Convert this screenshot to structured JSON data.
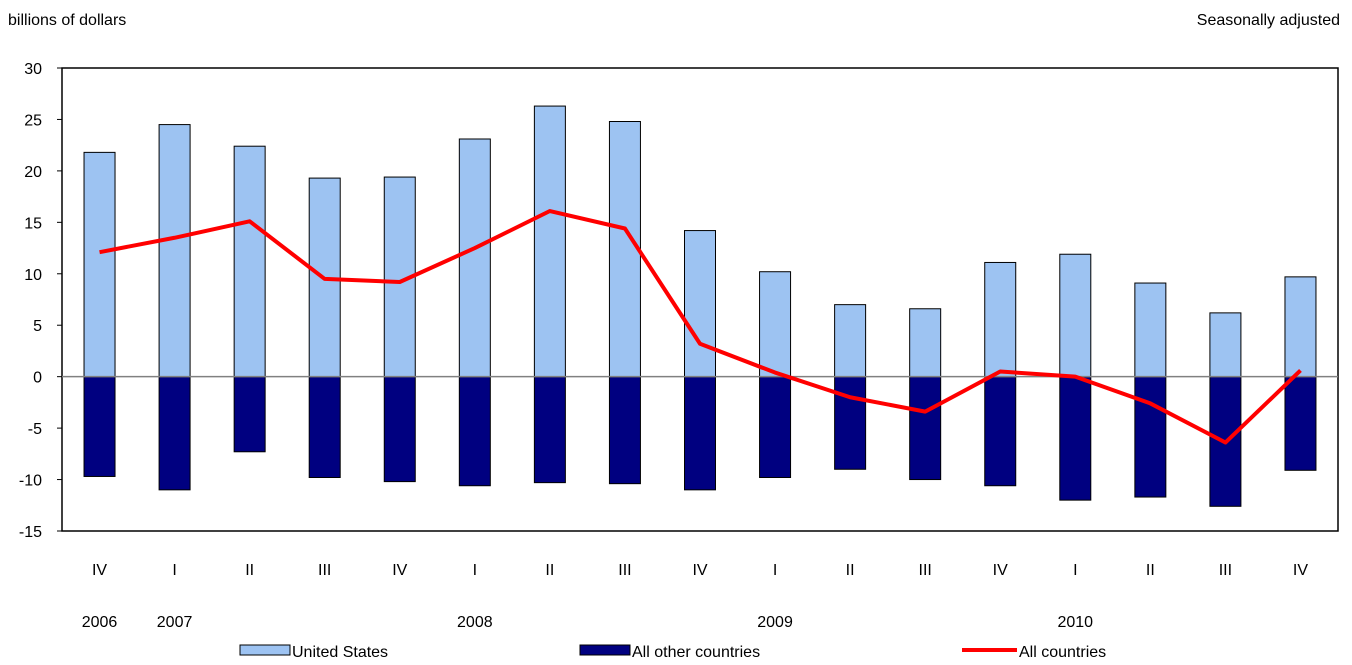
{
  "chart_data": {
    "type": "bar",
    "ylabel": "billions of dollars",
    "note": "Seasonally adjusted",
    "ylim": [
      -15,
      30
    ],
    "yticks": [
      30,
      25,
      20,
      15,
      10,
      5,
      0,
      -5,
      -10,
      -15
    ],
    "categories": [
      "IV",
      "I",
      "II",
      "III",
      "IV",
      "I",
      "II",
      "III",
      "IV",
      "I",
      "II",
      "III",
      "IV",
      "I",
      "II",
      "III",
      "IV"
    ],
    "years": [
      {
        "label": "2006",
        "index": 0
      },
      {
        "label": "2007",
        "index": 1
      },
      {
        "label": "2008",
        "index": 5
      },
      {
        "label": "2009",
        "index": 9
      },
      {
        "label": "2010",
        "index": 13
      }
    ],
    "series": [
      {
        "name": "United States",
        "kind": "bar",
        "color": "#9DC3F2",
        "values": [
          21.8,
          24.5,
          22.4,
          19.3,
          19.4,
          23.1,
          26.3,
          24.8,
          14.2,
          10.2,
          7.0,
          6.6,
          11.1,
          11.9,
          9.1,
          6.2,
          9.7
        ]
      },
      {
        "name": "All other countries",
        "kind": "bar",
        "color": "#000080",
        "values": [
          -9.7,
          -11.0,
          -7.3,
          -9.8,
          -10.2,
          -10.6,
          -10.3,
          -10.4,
          -11.0,
          -9.8,
          -9.0,
          -10.0,
          -10.6,
          -12.0,
          -11.7,
          -12.6,
          -9.1
        ]
      },
      {
        "name": "All countries",
        "kind": "line",
        "color": "#FF0000",
        "values": [
          12.1,
          13.5,
          15.1,
          9.5,
          9.2,
          12.5,
          16.1,
          14.4,
          3.2,
          0.4,
          -2.0,
          -3.4,
          0.5,
          0.0,
          -2.6,
          -6.4,
          0.6
        ]
      }
    ],
    "grid": false,
    "legend_position": "bottom"
  }
}
